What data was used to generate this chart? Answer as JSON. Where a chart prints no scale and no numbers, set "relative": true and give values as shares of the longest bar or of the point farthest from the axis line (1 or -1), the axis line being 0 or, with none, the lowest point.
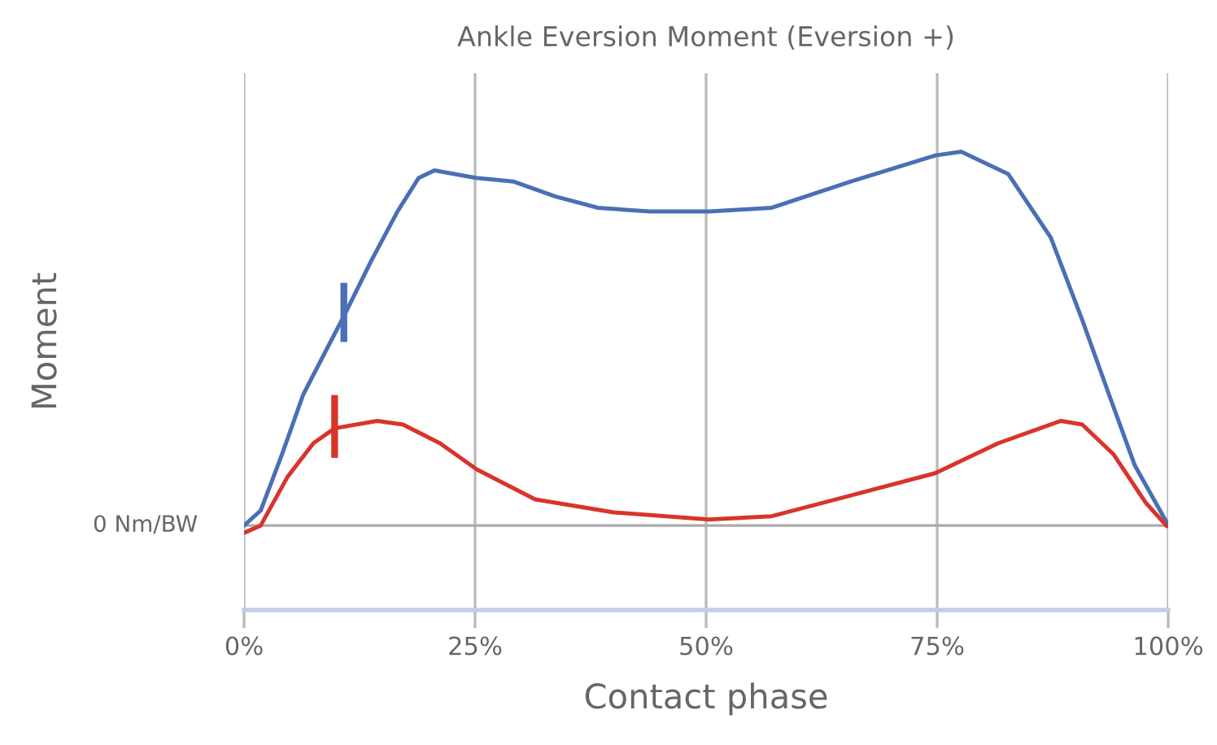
{
  "chart_data": {
    "type": "line",
    "title": "Ankle Eversion Moment (Eversion +)",
    "xlabel": "Contact phase",
    "ylabel": "Moment",
    "relative": true,
    "grid": "x",
    "legend": false,
    "marker": "none",
    "line_style": "solid",
    "xlim": [
      0,
      100
    ],
    "xticks": [
      {
        "value": 0,
        "label": "0%"
      },
      {
        "value": 25,
        "label": "25%"
      },
      {
        "value": 50,
        "label": "50%"
      },
      {
        "value": 75,
        "label": "75%"
      },
      {
        "value": 100,
        "label": "100%"
      }
    ],
    "ref_lines": [
      {
        "axis": "y",
        "value": 0,
        "label": "0 Nm/BW",
        "color": "#aaaaaa"
      }
    ],
    "series": [
      {
        "color": "#4a6fb5",
        "x": [
          0,
          1.8,
          4.1,
          6.4,
          8.7,
          10.8,
          13.8,
          16.6,
          18.9,
          20.6,
          25.1,
          29.2,
          33.7,
          38.3,
          43.9,
          50.3,
          57.1,
          65.6,
          74.8,
          77.6,
          82.7,
          87.3,
          90.7,
          93.6,
          96.4,
          99.8,
          100
        ],
        "values": [
          0,
          0.04,
          0.19,
          0.35,
          0.46,
          0.56,
          0.71,
          0.84,
          0.93,
          0.95,
          0.93,
          0.92,
          0.88,
          0.85,
          0.84,
          0.84,
          0.85,
          0.92,
          0.99,
          1.0,
          0.94,
          0.77,
          0.55,
          0.35,
          0.16,
          0.01,
          0
        ]
      },
      {
        "color": "#d9342b",
        "x": [
          0,
          1.8,
          4.7,
          7.5,
          9.8,
          14.4,
          17.2,
          21.2,
          25.2,
          31.5,
          40,
          50.3,
          57.1,
          65.6,
          74.8,
          81.6,
          88.4,
          90.7,
          94.1,
          97.6,
          99.8
        ],
        "values": [
          -0.02,
          0,
          0.13,
          0.22,
          0.26,
          0.28,
          0.27,
          0.22,
          0.15,
          0.07,
          0.035,
          0.016,
          0.025,
          0.08,
          0.14,
          0.22,
          0.28,
          0.27,
          0.19,
          0.06,
          0
        ]
      },
      {
        "type": "line",
        "color": "#4a6fb5",
        "x": [
          10.8,
          10.8
        ],
        "values": [
          0.5,
          0.64
        ]
      },
      {
        "type": "line",
        "color": "#d9342b",
        "x": [
          9.8,
          9.8
        ],
        "values": [
          0.19,
          0.34
        ]
      }
    ]
  }
}
